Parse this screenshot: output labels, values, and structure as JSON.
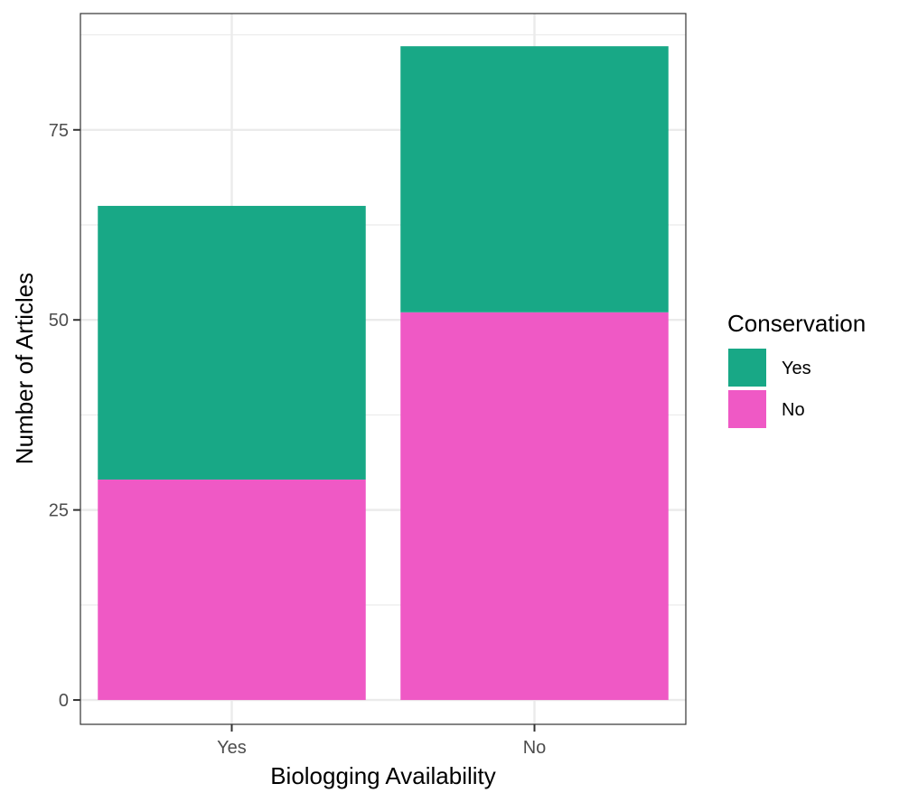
{
  "chart_data": {
    "type": "bar",
    "stacked": true,
    "categories": [
      "Yes",
      "No"
    ],
    "series": [
      {
        "name": "No",
        "values": [
          29,
          51
        ],
        "color": "#EF59C5"
      },
      {
        "name": "Yes",
        "values": [
          36,
          35
        ],
        "color": "#18A886"
      }
    ],
    "xlabel": "Biologging Availability",
    "ylabel": "Number of Articles",
    "ylim": [
      -3.2,
      90.3
    ],
    "yticks": [
      0,
      25,
      50,
      75
    ],
    "ytick_labels": [
      "0",
      "25",
      "50",
      "75"
    ],
    "grid": true,
    "legend": {
      "title": "Conservation",
      "position": "right",
      "entries": [
        {
          "label": "Yes",
          "color": "#18A886"
        },
        {
          "label": "No",
          "color": "#EF59C5"
        }
      ]
    }
  }
}
